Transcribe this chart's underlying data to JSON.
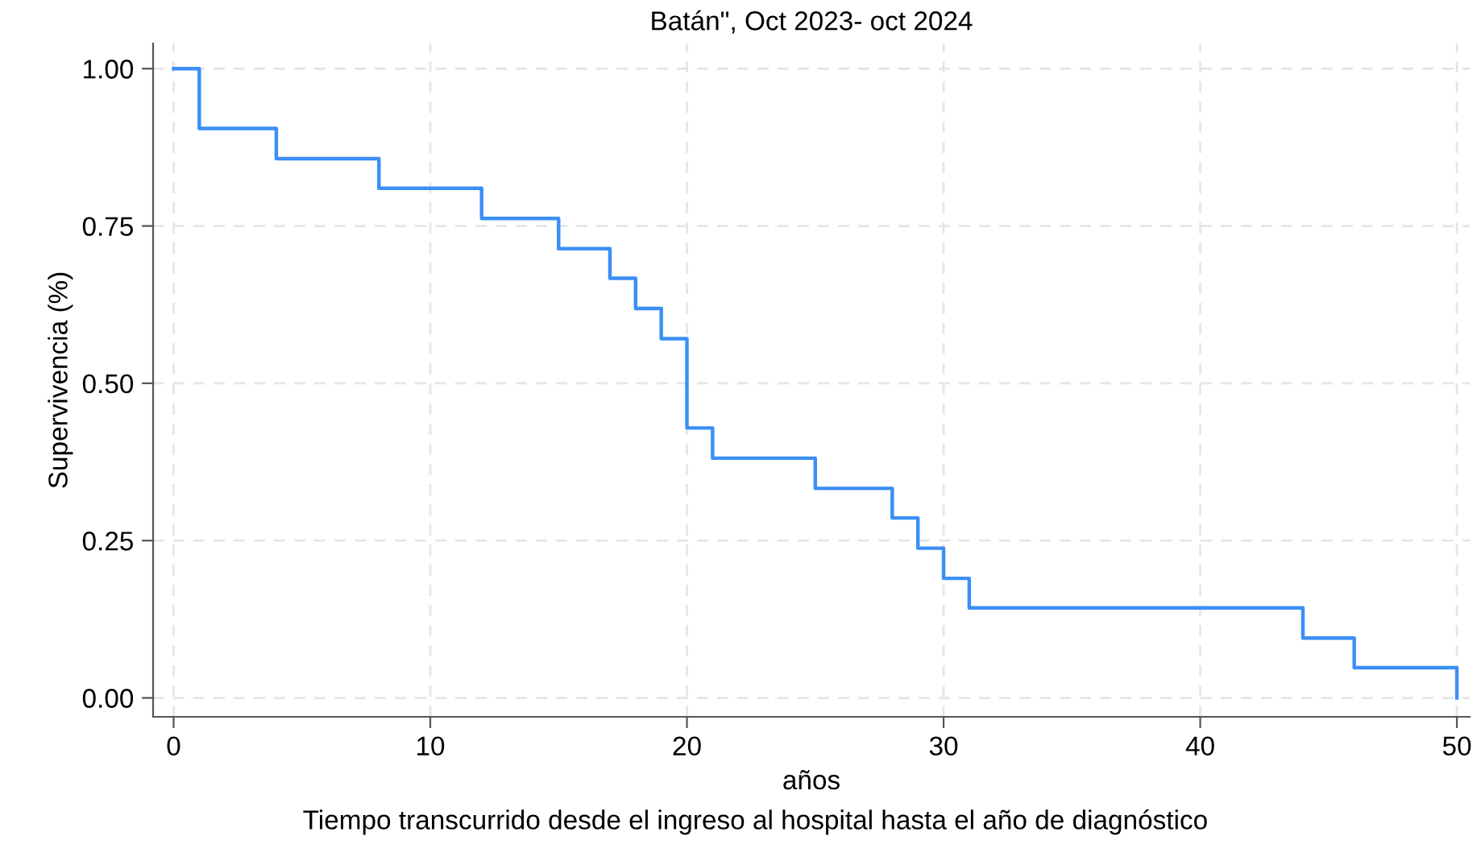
{
  "chart_data": {
    "type": "step",
    "title": "Batán\", Oct 2023- oct 2024",
    "xlabel": "años",
    "ylabel": "Supervivencia (%)",
    "annotations": [
      "Tiempo transcurrido desde el ingreso al hospital hasta el año de diagnóstico"
    ],
    "series": [
      {
        "color": "#3b8ff5",
        "x": [
          0,
          1,
          4,
          8,
          12,
          15,
          17,
          18,
          19,
          20,
          21,
          25,
          28,
          29,
          30,
          31,
          44,
          46,
          50
        ],
        "values": [
          1.0,
          0.905,
          0.857,
          0.81,
          0.762,
          0.714,
          0.667,
          0.619,
          0.571,
          0.429,
          0.381,
          0.333,
          0.286,
          0.238,
          0.19,
          0.143,
          0.095,
          0.048,
          0.0
        ]
      }
    ],
    "xlim": [
      -0.8,
      50.5
    ],
    "ylim": [
      -0.03,
      1.04
    ],
    "xticks": [
      0,
      10,
      20,
      30,
      40,
      50
    ],
    "yticks": [
      {
        "value": 0,
        "label": "0.00"
      },
      {
        "value": 0.25,
        "label": "0.25"
      },
      {
        "value": 0.5,
        "label": "0.50"
      },
      {
        "value": 0.75,
        "label": "0.75"
      },
      {
        "value": 1,
        "label": "1.00"
      }
    ],
    "grid": true,
    "legend": false,
    "line_style": "solid",
    "marker": "none"
  }
}
